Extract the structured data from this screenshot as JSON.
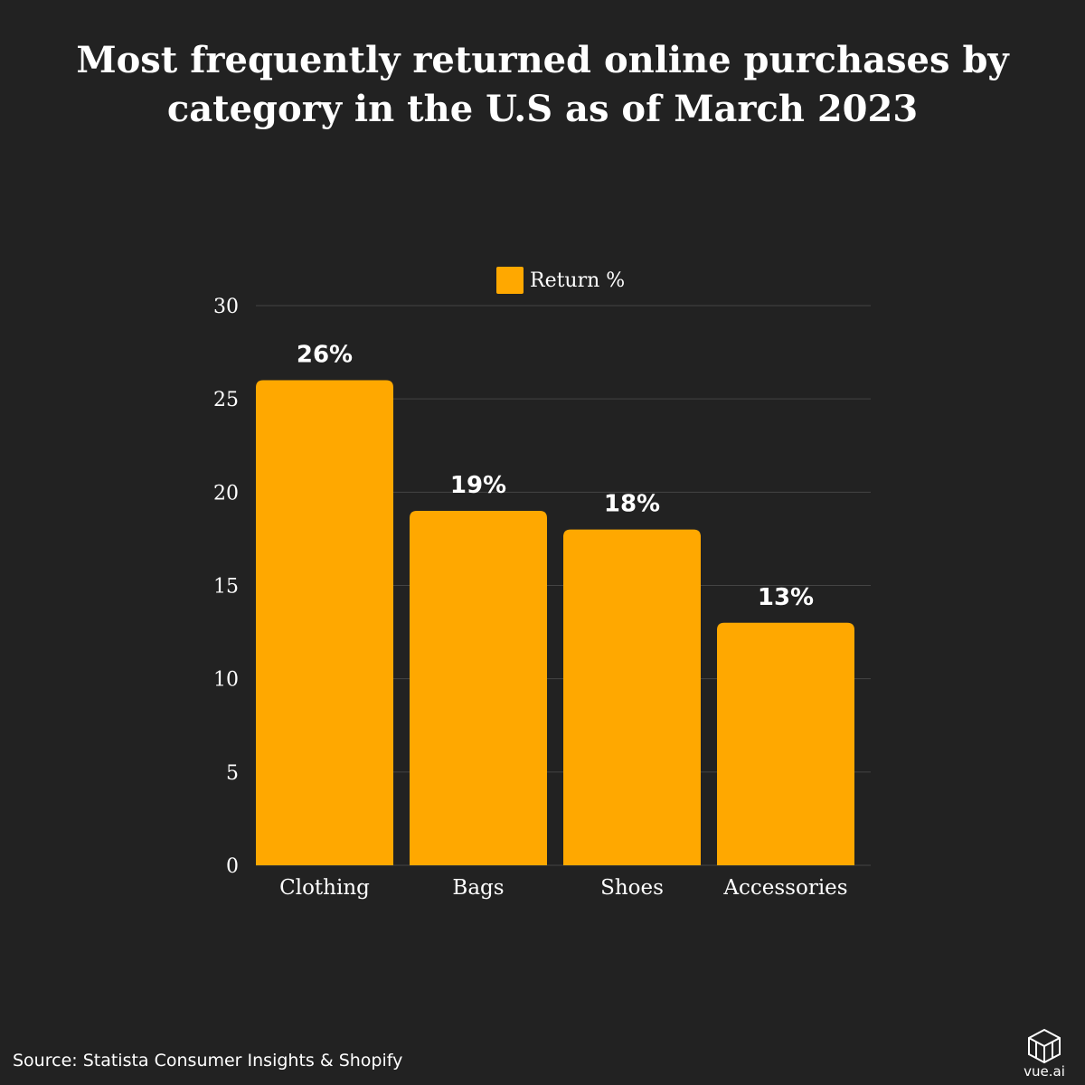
{
  "colors": {
    "background": "#222222",
    "bar": "#FFA800",
    "gridline": "#444444",
    "text": "#ffffff"
  },
  "chart_data": {
    "type": "bar",
    "title": "Most frequently returned online purchases by category in the U.S as of March 2023",
    "categories": [
      "Clothing",
      "Bags",
      "Shoes",
      "Accessories"
    ],
    "series": [
      {
        "name": "Return %",
        "values": [
          26,
          19,
          18,
          13
        ],
        "data_labels": [
          "26%",
          "19%",
          "18%",
          "13%"
        ]
      }
    ],
    "y_ticks": [
      "0",
      "5",
      "10",
      "15",
      "20",
      "25",
      "30"
    ],
    "ylim": [
      0,
      30
    ],
    "xlabel": "",
    "ylabel": "",
    "grid": true,
    "legend_position": "top-center"
  },
  "source": "Source: Statista Consumer Insights & Shopify",
  "logo": {
    "icon": "vue-ai-logo-icon",
    "text": "vue.ai"
  }
}
